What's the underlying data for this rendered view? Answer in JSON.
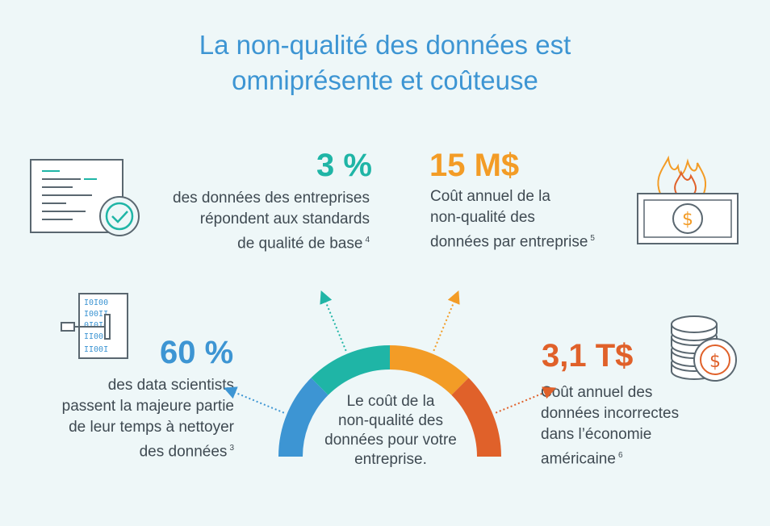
{
  "title": {
    "line1": "La non-qualité des données est",
    "line2": "omniprésente et coûteuse"
  },
  "stats": [
    {
      "value": "3 %",
      "lines": [
        "des données des entreprises",
        "répondent aux standards",
        "de qualité de base"
      ],
      "note": "4",
      "color": "#1fb5a6",
      "icon": "document-check-icon"
    },
    {
      "value": "15 M$",
      "lines": [
        "Coût annuel de la",
        "non-qualité des",
        "données par entreprise"
      ],
      "note": "5",
      "color": "#f39c26",
      "icon": "burning-money-icon"
    },
    {
      "value": "60 %",
      "lines": [
        "des data scientists",
        "passent la majeure partie",
        "de leur temps à nettoyer",
        "des données"
      ],
      "note": "3",
      "color": "#3d95d3",
      "icon": "binary-data-icon"
    },
    {
      "value": "3,1 T$",
      "lines": [
        "Coût annuel des",
        "données incorrectes",
        "dans l’économie",
        "américaine"
      ],
      "note": "6",
      "color": "#e0612a",
      "icon": "coins-stack-icon"
    }
  ],
  "center": {
    "lines": [
      "Le coût de la",
      "non-qualité des",
      "données pour votre",
      "entreprise."
    ]
  },
  "gauge": {
    "segment_colors": [
      "#3d95d3",
      "#1fb5a6",
      "#f39c26",
      "#e0612a"
    ]
  }
}
